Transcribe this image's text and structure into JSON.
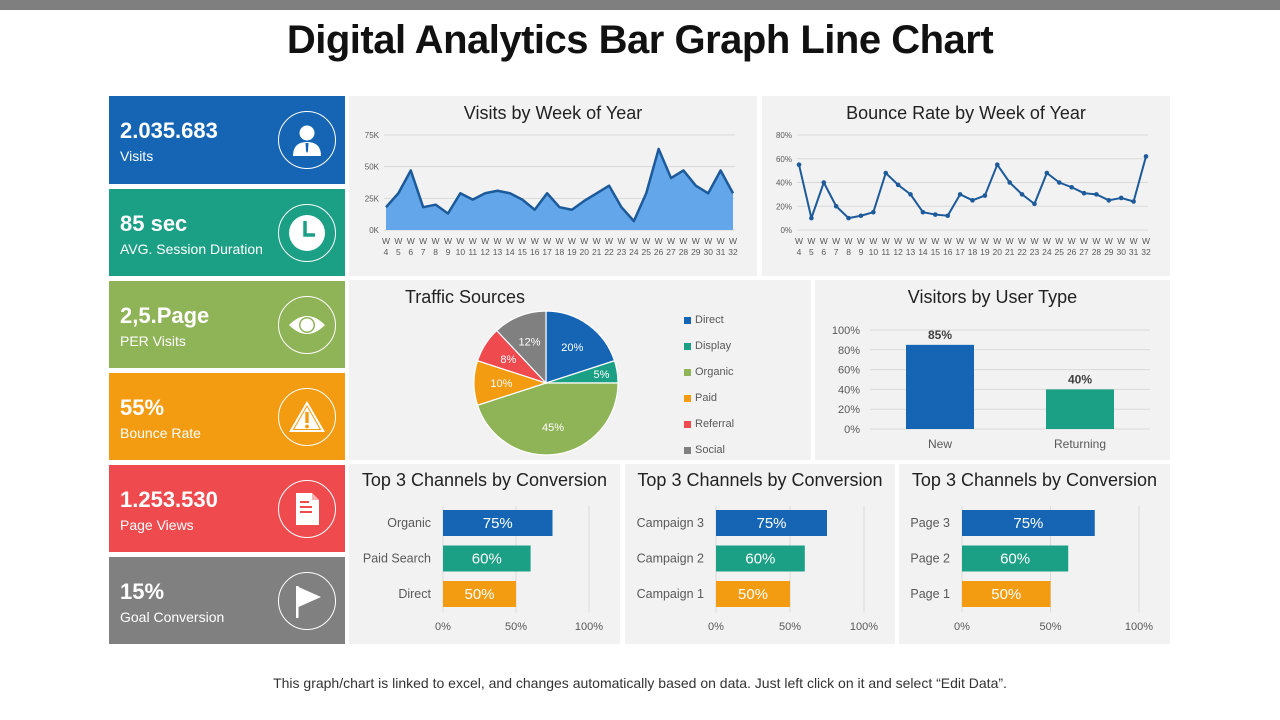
{
  "title": "Digital Analytics Bar Graph Line Chart",
  "footer": "This graph/chart is linked to excel, and changes automatically  based on data. Just left click on it and select “Edit Data”.",
  "colors": {
    "blue": "#1565b4",
    "teal": "#1ca085",
    "green": "#8fb357",
    "orange": "#f39c12",
    "red": "#ef4b4f",
    "gray": "#808080",
    "area_fill": "#63a6ea",
    "line": "#1c5a9a",
    "panel_bg": "#f2f2f2"
  },
  "kpis": [
    {
      "value": "2.035.683",
      "label": "Visits",
      "icon": "user-icon",
      "color": "#1565b4"
    },
    {
      "value": "85 sec",
      "label": "AVG.  Session Duration",
      "icon": "clock-icon",
      "color": "#1ca085"
    },
    {
      "value": "2,5.Page",
      "label": "PER Visits",
      "icon": "eye-icon",
      "color": "#8fb357"
    },
    {
      "value": "55%",
      "label": "Bounce Rate",
      "icon": "warning-icon",
      "color": "#f39c12"
    },
    {
      "value": "1.253.530",
      "label": "Page Views",
      "icon": "document-icon",
      "color": "#ef4b4f"
    },
    {
      "value": "15%",
      "label": "Goal Conversion",
      "icon": "flag-icon",
      "color": "#808080"
    }
  ],
  "panels": {
    "visits": {
      "title": "Visits by Week of Year"
    },
    "bounce": {
      "title": "Bounce Rate by Week of Year"
    },
    "traffic": {
      "title": "Traffic Sources"
    },
    "visitors": {
      "title": "Visitors by User Type"
    },
    "top1": {
      "title": "Top 3 Channels by Conversion"
    },
    "top2": {
      "title": "Top 3 Channels by Conversion"
    },
    "top3": {
      "title": "Top 3 Channels by Conversion"
    }
  },
  "chart_data": [
    {
      "id": "visits",
      "type": "area",
      "title": "Visits by Week of Year",
      "xlabel": "",
      "ylabel": "",
      "categories": [
        "W 4",
        "W 5",
        "W 6",
        "W 7",
        "W 8",
        "W 9",
        "W 10",
        "W 11",
        "W 12",
        "W 13",
        "W 14",
        "W 15",
        "W 16",
        "W 17",
        "W 18",
        "W 19",
        "W 20",
        "W 21",
        "W 22",
        "W 23",
        "W 24",
        "W 25",
        "W 26",
        "W 27",
        "W 28",
        "W 29",
        "W 30",
        "W 31",
        "W 32"
      ],
      "values": [
        18000,
        29000,
        47000,
        18000,
        20000,
        13000,
        29000,
        24000,
        29000,
        31000,
        29000,
        24000,
        16000,
        29000,
        18000,
        16000,
        23000,
        29000,
        35000,
        18000,
        7000,
        29000,
        64000,
        41000,
        47000,
        35000,
        29000,
        47000,
        29000
      ],
      "yticks": [
        "0K",
        "25K",
        "50K",
        "75K"
      ],
      "ylim": [
        0,
        75000
      ],
      "grid": true
    },
    {
      "id": "bounce",
      "type": "line",
      "title": "Bounce Rate by Week of Year",
      "xlabel": "",
      "ylabel": "",
      "categories": [
        "W 4",
        "W 5",
        "W 6",
        "W 7",
        "W 8",
        "W 9",
        "W 10",
        "W 11",
        "W 12",
        "W 13",
        "W 14",
        "W 15",
        "W 16",
        "W 17",
        "W 18",
        "W 19",
        "W 20",
        "W 21",
        "W 22",
        "W 23",
        "W 24",
        "W 25",
        "W 26",
        "W 27",
        "W 28",
        "W 29",
        "W 30",
        "W 31",
        "W 32"
      ],
      "values": [
        55,
        10,
        40,
        20,
        10,
        12,
        15,
        48,
        38,
        30,
        15,
        13,
        12,
        30,
        25,
        29,
        55,
        40,
        30,
        22,
        48,
        40,
        36,
        31,
        30,
        25,
        27,
        24,
        62
      ],
      "yticks": [
        "0%",
        "20%",
        "40%",
        "60%",
        "80%"
      ],
      "ylim": [
        0,
        80
      ],
      "grid": true
    },
    {
      "id": "traffic",
      "type": "pie",
      "title": "Traffic Sources",
      "categories": [
        "Direct",
        "Display",
        "Organic",
        "Paid",
        "Referral",
        "Social"
      ],
      "values": [
        20,
        5,
        45,
        10,
        8,
        12
      ],
      "labels": [
        "20%",
        "5%",
        "45%",
        "10%",
        "8%",
        "12%"
      ],
      "colors": [
        "#1565b4",
        "#1ca085",
        "#8fb357",
        "#f39c12",
        "#ef4b4f",
        "#808080"
      ],
      "legend_position": "right"
    },
    {
      "id": "visitors",
      "type": "bar",
      "title": "Visitors by User Type",
      "categories": [
        "New",
        "Returning"
      ],
      "values": [
        85,
        40
      ],
      "labels": [
        "85%",
        "40%"
      ],
      "colors": [
        "#1565b4",
        "#1ca085"
      ],
      "yticks": [
        "0%",
        "20%",
        "40%",
        "60%",
        "80%",
        "100%"
      ],
      "ylim": [
        0,
        100
      ],
      "grid": true
    },
    {
      "id": "top1",
      "type": "bar",
      "orientation": "horizontal",
      "title": "Top 3 Channels by Conversion",
      "categories": [
        "Organic",
        "Paid Search",
        "Direct"
      ],
      "values": [
        75,
        60,
        50
      ],
      "labels": [
        "75%",
        "60%",
        "50%"
      ],
      "colors": [
        "#1565b4",
        "#1ca085",
        "#f39c12"
      ],
      "xticks": [
        "0%",
        "50%",
        "100%"
      ],
      "xlim": [
        0,
        100
      ]
    },
    {
      "id": "top2",
      "type": "bar",
      "orientation": "horizontal",
      "title": "Top 3 Channels by Conversion",
      "categories": [
        "Campaign 3",
        "Campaign 2",
        "Campaign 1"
      ],
      "values": [
        75,
        60,
        50
      ],
      "labels": [
        "75%",
        "60%",
        "50%"
      ],
      "colors": [
        "#1565b4",
        "#1ca085",
        "#f39c12"
      ],
      "xticks": [
        "0%",
        "50%",
        "100%"
      ],
      "xlim": [
        0,
        100
      ]
    },
    {
      "id": "top3",
      "type": "bar",
      "orientation": "horizontal",
      "title": "Top 3 Channels by Conversion",
      "categories": [
        "Page 3",
        "Page 2",
        "Page 1"
      ],
      "values": [
        75,
        60,
        50
      ],
      "labels": [
        "75%",
        "60%",
        "50%"
      ],
      "colors": [
        "#1565b4",
        "#1ca085",
        "#f39c12"
      ],
      "xticks": [
        "0%",
        "50%",
        "100%"
      ],
      "xlim": [
        0,
        100
      ]
    }
  ]
}
